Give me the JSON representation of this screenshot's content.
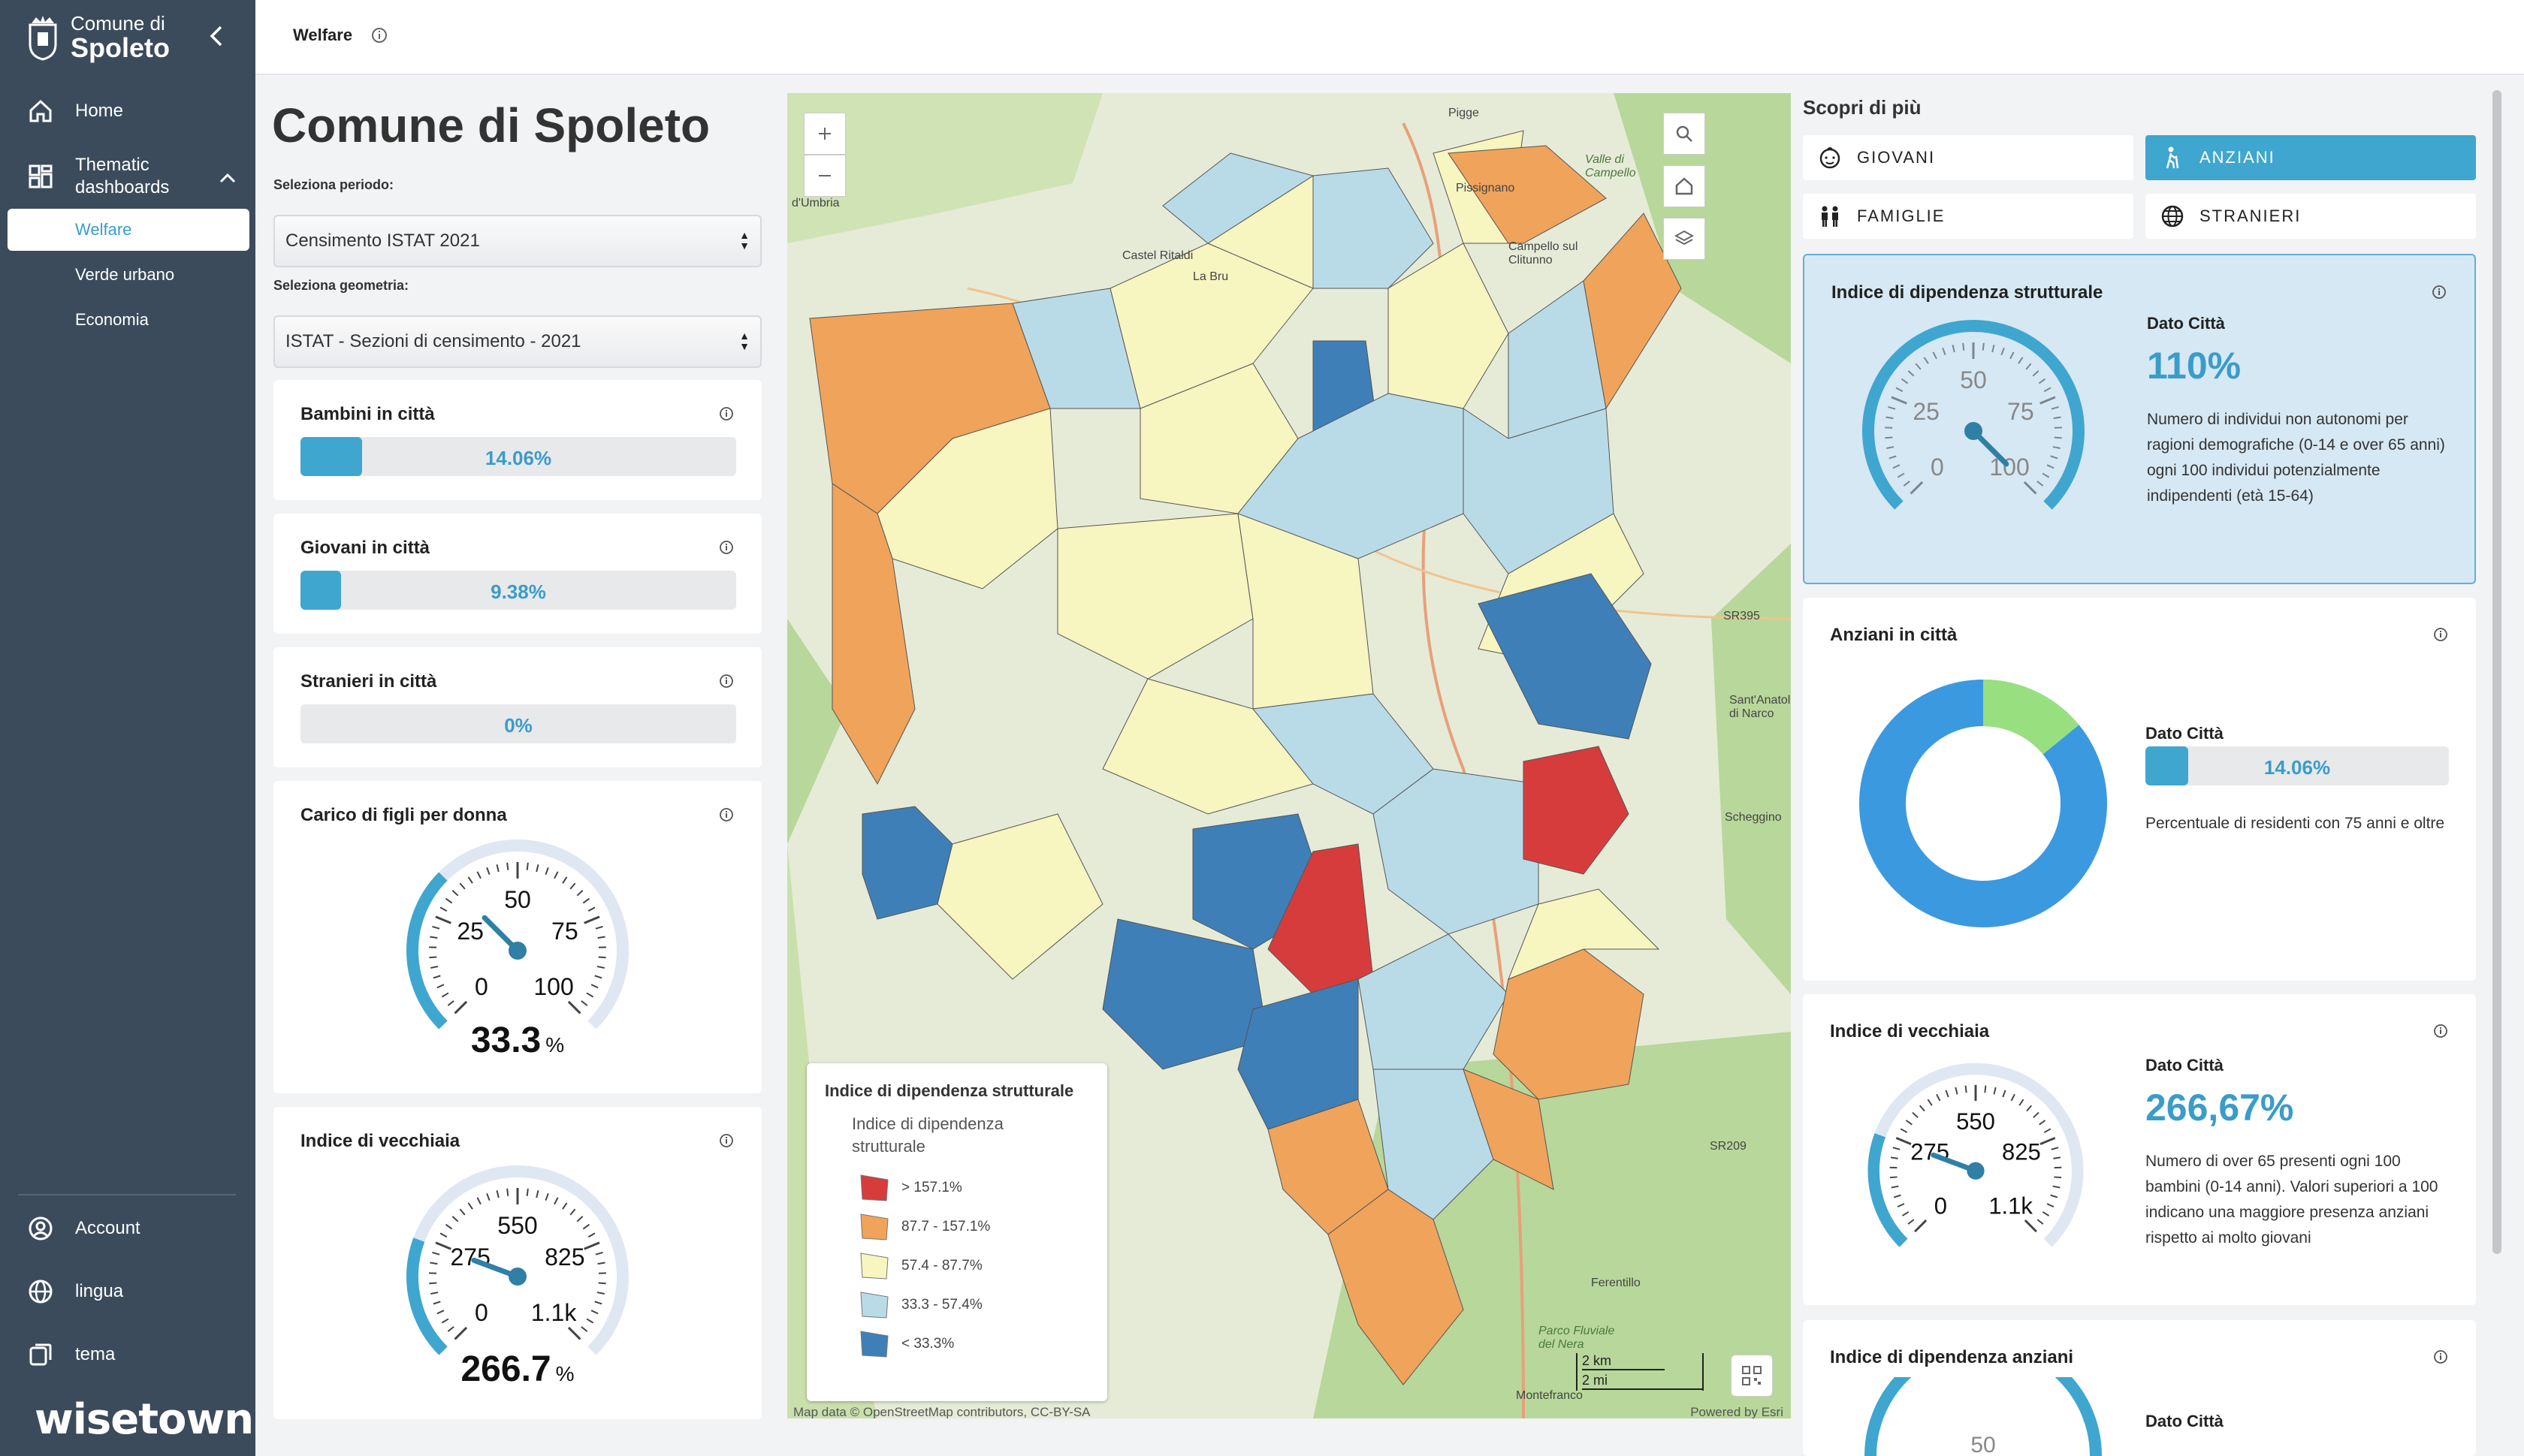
{
  "sidebar": {
    "logo": {
      "small": "Comune di",
      "big": "Spoleto"
    },
    "items": [
      {
        "label": "Home",
        "icon": "home-icon"
      },
      {
        "label": "Thematic dashboards",
        "icon": "dashboard-icon"
      }
    ],
    "subitems": [
      {
        "label": "Welfare",
        "active": true
      },
      {
        "label": "Verde urbano",
        "active": false
      },
      {
        "label": "Economia",
        "active": false
      }
    ],
    "bottom": [
      {
        "label": "Account",
        "icon": "account-icon"
      },
      {
        "label": "lingua",
        "icon": "globe-icon"
      },
      {
        "label": "tema",
        "icon": "theme-icon"
      }
    ],
    "brand": "wisetown"
  },
  "topbar": {
    "breadcrumb": "Welfare"
  },
  "left": {
    "title": "Comune di Spoleto",
    "period_label": "Seleziona periodo:",
    "period_value": "Censimento ISTAT 2021",
    "geometry_label": "Seleziona geometria:",
    "geometry_value": "ISTAT - Sezioni di censimento - 2021",
    "bars": [
      {
        "title": "Bambini in città",
        "value": "14.06%",
        "fraction": 0.1406
      },
      {
        "title": "Giovani in città",
        "value": "9.38%",
        "fraction": 0.0938
      },
      {
        "title": "Stranieri in città",
        "value": "0%",
        "fraction": 0
      }
    ],
    "gauge1": {
      "title": "Carico di figli per donna",
      "ticks": [
        "0",
        "25",
        "50",
        "75",
        "100"
      ],
      "value": "33.3",
      "unit": "%",
      "level": 0.333
    },
    "gauge2": {
      "title": "Indice di vecchiaia",
      "ticks": [
        "0",
        "275",
        "550",
        "825",
        "1.1k"
      ],
      "value": "266.7",
      "unit": "%",
      "level": 0.2424
    }
  },
  "map": {
    "legend_title": "Indice di dipendenza strutturale",
    "legend_subtitle": "Indice di dipendenza strutturale",
    "legend_items": [
      {
        "label": "> 157.1%",
        "color": "#d73c3c"
      },
      {
        "label": "87.7 - 157.1%",
        "color": "#f0a35a"
      },
      {
        "label": "57.4 - 87.7%",
        "color": "#f7f5c0"
      },
      {
        "label": "33.3 - 57.4%",
        "color": "#b9dbe8"
      },
      {
        "label": "< 33.3%",
        "color": "#3f7fb8"
      }
    ],
    "scale_km": "2 km",
    "scale_mi": "2 mi",
    "attribution": "Map data © OpenStreetMap contributors, CC-BY-SA",
    "powered": "Powered by Esri",
    "places": [
      "Pigge",
      "Pissignano",
      "Castel Ritaldi",
      "La Bru",
      "Campello sul Clitunno",
      "Ferentillo",
      "Montefranco",
      "Scheggino",
      "SR395",
      "SR209",
      "Valle di Campello",
      "d'Umbria",
      "Sant'Anatolia di Narco",
      "Parco Fluviale del Nera"
    ]
  },
  "right": {
    "scopri": "Scopri di più",
    "topics": [
      {
        "label": "GIOVANI",
        "icon": "baby-icon",
        "active": false
      },
      {
        "label": "ANZIANI",
        "icon": "elderly-icon",
        "active": true
      },
      {
        "label": "FAMIGLIE",
        "icon": "family-icon",
        "active": false
      },
      {
        "label": "STRANIERI",
        "icon": "globe-icon",
        "active": false
      }
    ],
    "card1": {
      "title": "Indice di dipendenza strutturale",
      "dato": "Dato Città",
      "value": "110%",
      "ticks": [
        "0",
        "25",
        "50",
        "75",
        "100"
      ],
      "level": 1.1,
      "desc": "Numero di individui non autonomi per ragioni demografiche (0-14 e over 65 anni) ogni 100 individui potenzialmente indipendenti (età 15-64)"
    },
    "card2": {
      "title": "Anziani in città",
      "dato": "Dato Città",
      "bar_value": "14.06%",
      "fraction": 0.1406,
      "desc": "Percentuale di residenti con 75 anni e oltre",
      "donut_colors": [
        "#3b99e0",
        "#98e07f"
      ]
    },
    "card3": {
      "title": "Indice di vecchiaia",
      "dato": "Dato Città",
      "value": "266,67%",
      "ticks": [
        "0",
        "275",
        "550",
        "825",
        "1.1k"
      ],
      "level": 0.2424,
      "desc": "Numero di over 65 presenti ogni 100 bambini (0-14 anni). Valori superiori a 100 indicano una maggiore presenza anziani rispetto ai molto giovani"
    },
    "card4": {
      "title": "Indice di dipendenza anziani",
      "dato": "Dato Città",
      "ticks": [
        "50"
      ]
    }
  }
}
